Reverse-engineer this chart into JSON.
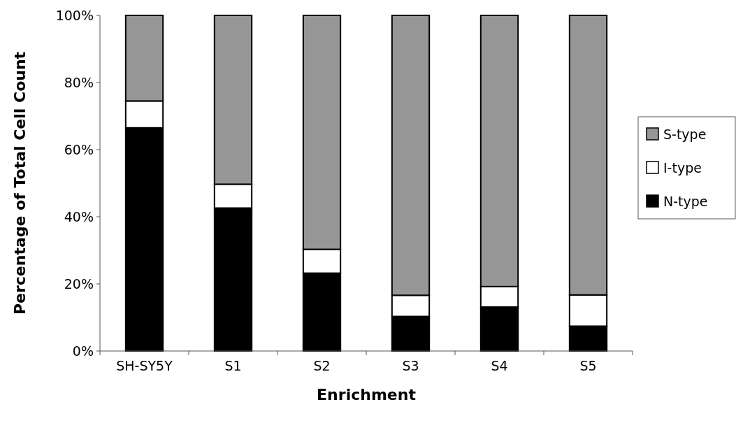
{
  "chart_data": {
    "type": "bar",
    "stacked": true,
    "xlabel": "Enrichment",
    "ylabel": "Percentage of Total Cell Count",
    "categories": [
      "SH-SY5Y",
      "S1",
      "S2",
      "S3",
      "S4",
      "S5"
    ],
    "series": [
      {
        "name": "N-type",
        "color": "#000000",
        "values": [
          66.5,
          42.6,
          23.2,
          10.3,
          13.1,
          7.4
        ]
      },
      {
        "name": "I-type",
        "color": "#ffffff",
        "values": [
          8.0,
          7.1,
          7.1,
          6.3,
          6.1,
          9.3
        ]
      },
      {
        "name": "S-type",
        "color": "#969696",
        "values": [
          25.5,
          50.3,
          69.7,
          83.4,
          80.8,
          83.3
        ]
      }
    ],
    "ylim": [
      0,
      100
    ],
    "yticks": [
      {
        "value": 0,
        "label": "0%"
      },
      {
        "value": 20,
        "label": "20%"
      },
      {
        "value": 40,
        "label": "40%"
      },
      {
        "value": 60,
        "label": "60%"
      },
      {
        "value": 80,
        "label": "80%"
      },
      {
        "value": 100,
        "label": "100%"
      }
    ],
    "grid": false,
    "legend": "right"
  }
}
